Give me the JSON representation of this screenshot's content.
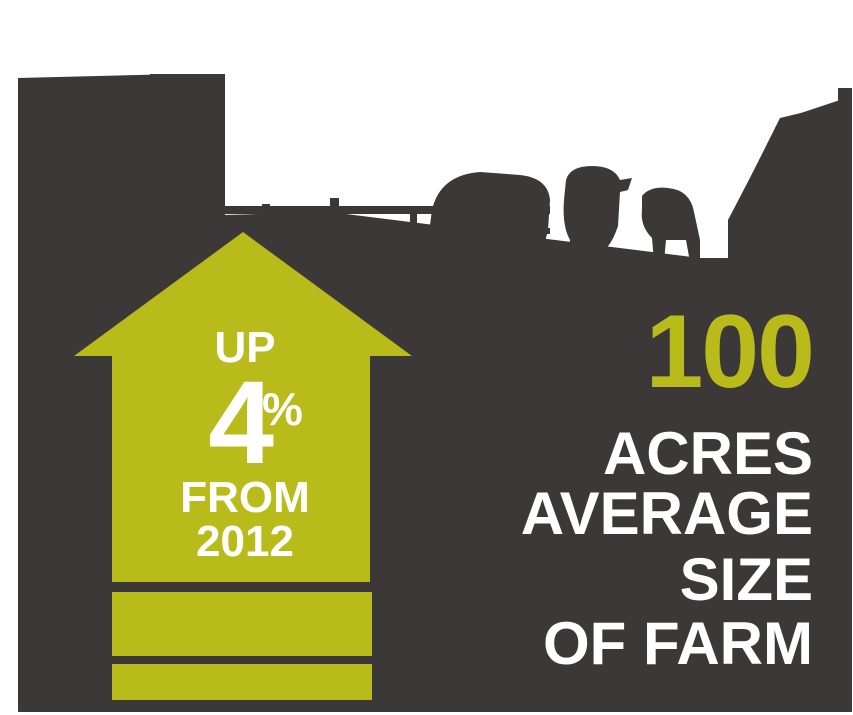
{
  "colors": {
    "background": "#ffffff",
    "silhouette": "#3b3837",
    "accent_green": "#b8bb19",
    "text_white": "#ffffff"
  },
  "arrow": {
    "up_label": "UP",
    "percent_value": "4",
    "percent_sign": "%",
    "from_label": "FROM",
    "year": "2012"
  },
  "stat": {
    "number": "100",
    "line1": "ACRES",
    "line2": "AVERAGE",
    "line3": "SIZE",
    "line4": "OF FARM"
  },
  "icons": [
    "barn-silhouette",
    "fence-silhouette",
    "cow-silhouette",
    "up-arrow"
  ]
}
